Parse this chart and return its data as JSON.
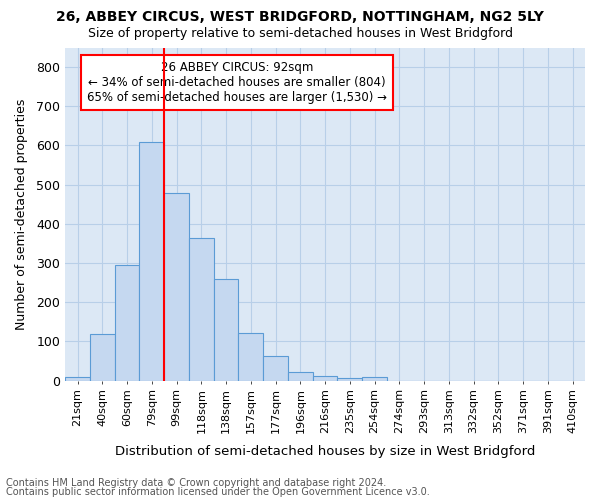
{
  "title1": "26, ABBEY CIRCUS, WEST BRIDGFORD, NOTTINGHAM, NG2 5LY",
  "title2": "Size of property relative to semi-detached houses in West Bridgford",
  "xlabel": "Distribution of semi-detached houses by size in West Bridgford",
  "ylabel": "Number of semi-detached properties",
  "categories": [
    "21sqm",
    "40sqm",
    "60sqm",
    "79sqm",
    "99sqm",
    "118sqm",
    "138sqm",
    "157sqm",
    "177sqm",
    "196sqm",
    "216sqm",
    "235sqm",
    "254sqm",
    "274sqm",
    "293sqm",
    "313sqm",
    "332sqm",
    "352sqm",
    "371sqm",
    "391sqm",
    "410sqm"
  ],
  "values": [
    8,
    118,
    295,
    610,
    480,
    365,
    260,
    122,
    63,
    21,
    11,
    6,
    8,
    0,
    0,
    0,
    0,
    0,
    0,
    0,
    0
  ],
  "bar_color": "#c5d8f0",
  "bar_edge_color": "#5b9bd5",
  "plot_bg_color": "#dce8f5",
  "fig_bg_color": "#ffffff",
  "grid_color": "#b8cfe8",
  "vline_color": "red",
  "vline_x_index": 4,
  "annotation_title": "26 ABBEY CIRCUS: 92sqm",
  "annotation_line1": "← 34% of semi-detached houses are smaller (804)",
  "annotation_line2": "65% of semi-detached houses are larger (1,530) →",
  "annotation_box_color": "red",
  "ylim": [
    0,
    850
  ],
  "yticks": [
    0,
    100,
    200,
    300,
    400,
    500,
    600,
    700,
    800
  ],
  "footnote1": "Contains HM Land Registry data © Crown copyright and database right 2024.",
  "footnote2": "Contains public sector information licensed under the Open Government Licence v3.0."
}
